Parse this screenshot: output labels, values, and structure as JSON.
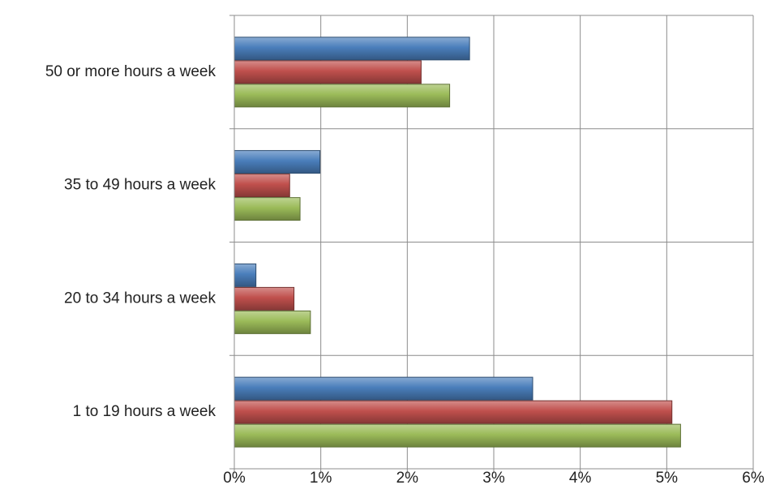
{
  "chart_data": {
    "type": "bar",
    "orientation": "horizontal",
    "categories": [
      "50 or more hours a week",
      "35 to 49 hours a week",
      "20 to 34 hours a week",
      "1 to 19 hours a week"
    ],
    "series": [
      {
        "values": [
          2.72,
          0.99,
          0.25,
          3.45
        ],
        "color": "#4a7ebb"
      },
      {
        "values": [
          2.16,
          0.64,
          0.69,
          5.06
        ],
        "color": "#c0504d"
      },
      {
        "values": [
          2.49,
          0.76,
          0.88,
          5.16
        ],
        "color": "#9bbb59"
      }
    ],
    "xticks": [
      "0%",
      "1%",
      "2%",
      "3%",
      "4%",
      "5%",
      "6%"
    ],
    "xlim": [
      0,
      6
    ],
    "value_unit": "%",
    "grid": true,
    "title": "",
    "xlabel": "",
    "ylabel": ""
  }
}
